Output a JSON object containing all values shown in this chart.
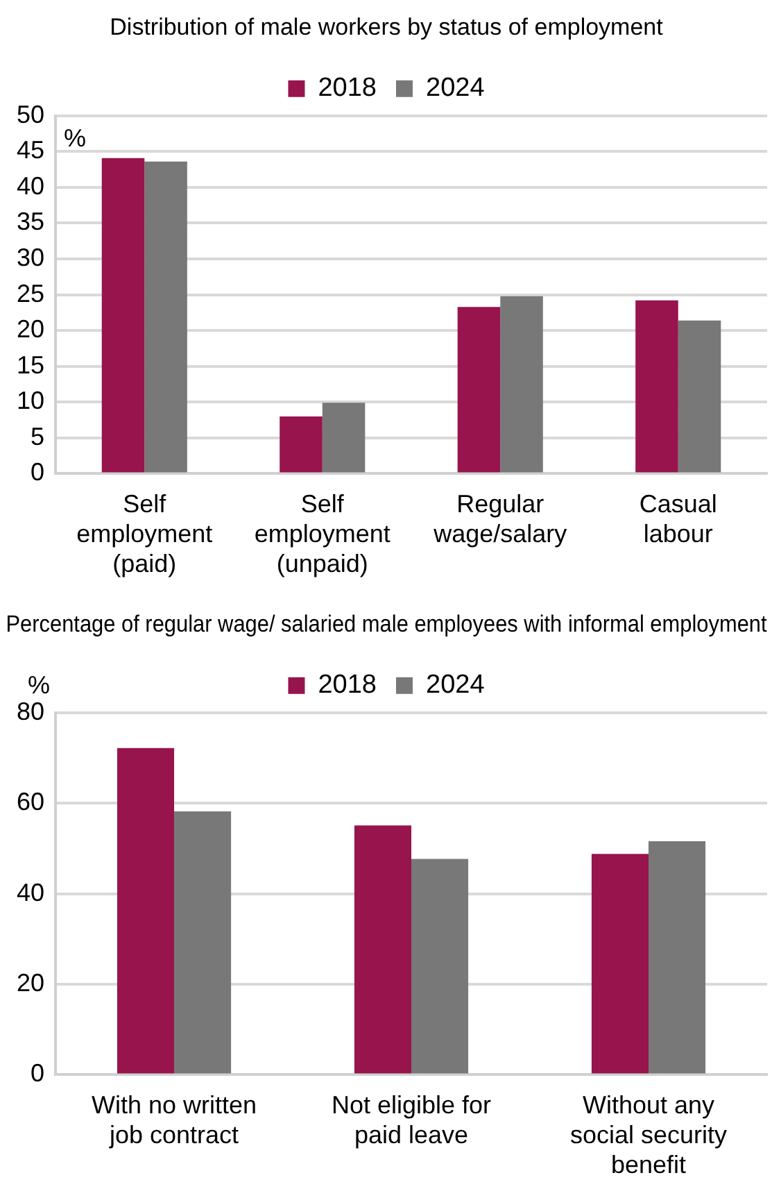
{
  "chart_data": [
    {
      "type": "bar",
      "title": "Distribution of male workers by status of employment",
      "ylabel": "%",
      "categories": [
        "Self employment (paid)",
        "Self employment (unpaid)",
        "Regular wage/salary",
        "Casual labour"
      ],
      "series": [
        {
          "name": "2018",
          "color": "#97144d",
          "values": [
            44.1,
            8.0,
            23.3,
            24.2
          ]
        },
        {
          "name": "2024",
          "color": "#787878",
          "values": [
            43.6,
            9.9,
            24.8,
            21.4
          ]
        }
      ],
      "ylim": [
        0,
        50
      ],
      "yticks": [
        0,
        5,
        10,
        15,
        20,
        25,
        30,
        35,
        40,
        45,
        50
      ],
      "grid": "y",
      "legend": "top"
    },
    {
      "type": "bar",
      "title": "Percentage of regular wage/ salaried male employees with informal employment",
      "ylabel": "%",
      "categories": [
        "With no written job contract",
        "Not eligible for paid leave",
        "Without any social security benefit"
      ],
      "series": [
        {
          "name": "2018",
          "color": "#97144d",
          "values": [
            72.2,
            55.1,
            48.8
          ]
        },
        {
          "name": "2024",
          "color": "#787878",
          "values": [
            58.2,
            47.7,
            51.6
          ]
        }
      ],
      "ylim": [
        0,
        80
      ],
      "yticks": [
        0,
        20,
        40,
        60,
        80
      ],
      "grid": "y",
      "legend": "top"
    }
  ]
}
